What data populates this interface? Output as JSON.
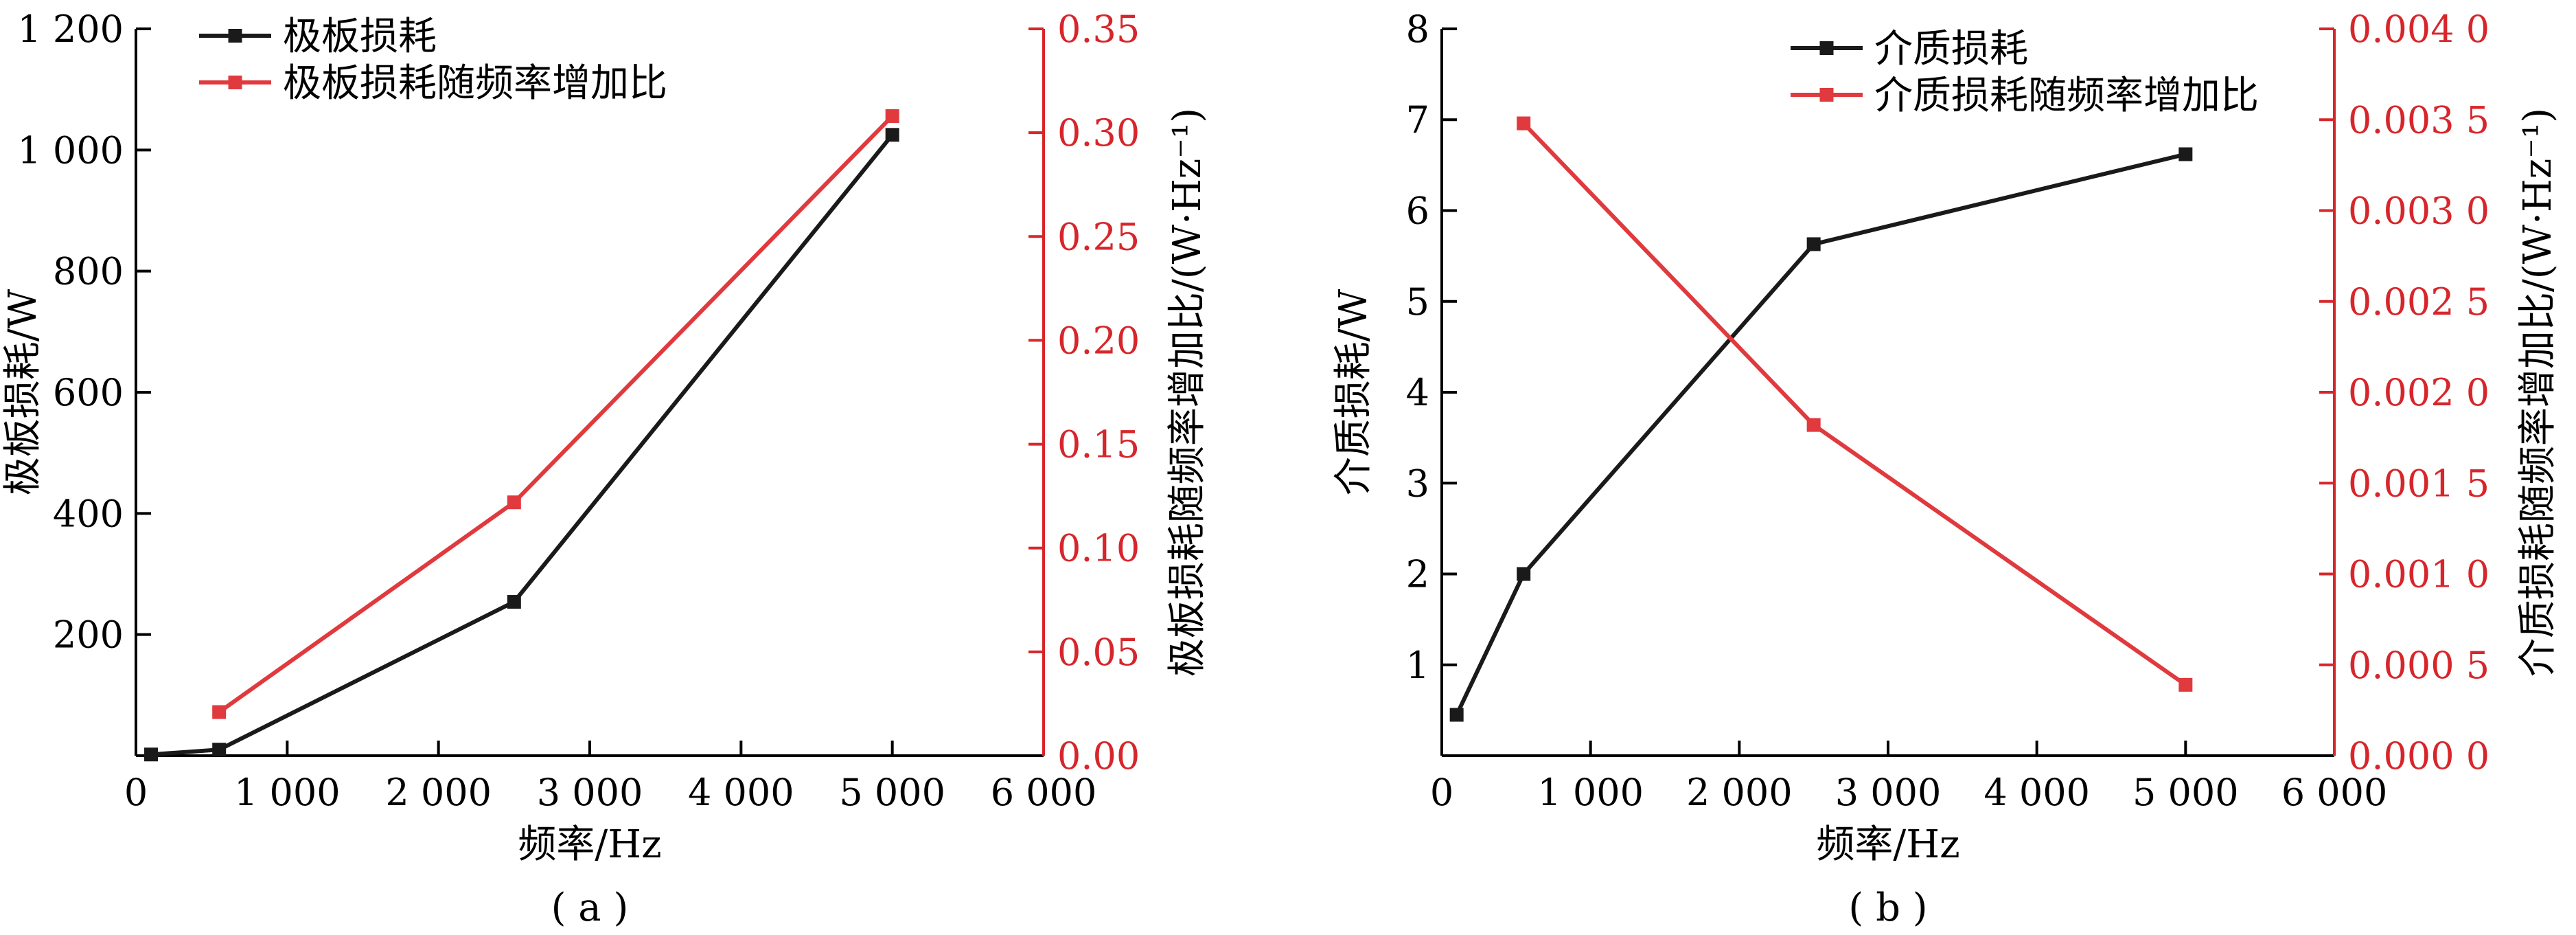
{
  "colors": {
    "black_series": "#1a1a1a",
    "red_series": "#e03a3e",
    "left_axis": "#000000",
    "right_axis": "#d7262b"
  },
  "chart_data": [
    {
      "type": "line",
      "panel_label": "( a )",
      "xlabel": "频率/Hz",
      "ylabel": "极板损耗/W",
      "y2label": "极板损耗随频率增加比/(W·Hz⁻¹)",
      "xlim": [
        0,
        6000
      ],
      "ylim": [
        0,
        1200
      ],
      "y2lim": [
        0,
        0.35
      ],
      "x_ticks": [
        0,
        1000,
        2000,
        3000,
        4000,
        5000,
        6000
      ],
      "x_tick_labels": [
        "0",
        "1 000",
        "2 000",
        "3 000",
        "4 000",
        "5 000",
        "6 000"
      ],
      "y_ticks": [
        200,
        400,
        600,
        800,
        1000,
        1200
      ],
      "y_tick_labels": [
        "200",
        "400",
        "600",
        "800",
        "1 000",
        "1 200"
      ],
      "y2_ticks": [
        0,
        0.05,
        0.1,
        0.15,
        0.2,
        0.25,
        0.3,
        0.35
      ],
      "y2_tick_labels": [
        "0.00",
        "0.05",
        "0.10",
        "0.15",
        "0.20",
        "0.25",
        "0.30",
        "0.35"
      ],
      "legend_position": "top-left",
      "series": [
        {
          "name": "极板损耗",
          "axis": "left",
          "x": [
            100,
            550,
            2500,
            5000
          ],
          "y": [
            2,
            10,
            254,
            1025
          ]
        },
        {
          "name": "极板损耗随频率增加比",
          "axis": "right",
          "x": [
            550,
            2500,
            5000
          ],
          "y": [
            0.021,
            0.122,
            0.308
          ]
        }
      ]
    },
    {
      "type": "line",
      "panel_label": "( b )",
      "xlabel": "频率/Hz",
      "ylabel": "介质损耗/W",
      "y2label": "介质损耗随频率增加比/(W·Hz⁻¹)",
      "xlim": [
        0,
        6000
      ],
      "ylim": [
        0,
        8
      ],
      "y2lim": [
        0,
        0.004
      ],
      "x_ticks": [
        0,
        1000,
        2000,
        3000,
        4000,
        5000,
        6000
      ],
      "x_tick_labels": [
        "0",
        "1 000",
        "2 000",
        "3 000",
        "4 000",
        "5 000",
        "6 000"
      ],
      "y_ticks": [
        1,
        2,
        3,
        4,
        5,
        6,
        7,
        8
      ],
      "y_tick_labels": [
        "1",
        "2",
        "3",
        "4",
        "5",
        "6",
        "7",
        "8"
      ],
      "y2_ticks": [
        0,
        0.0005,
        0.001,
        0.0015,
        0.002,
        0.0025,
        0.003,
        0.0035,
        0.004
      ],
      "y2_tick_labels": [
        "0.000 0",
        "0.000 5",
        "0.001 0",
        "0.001 5",
        "0.002 0",
        "0.002 5",
        "0.003 0",
        "0.003 5",
        "0.004 0"
      ],
      "legend_position": "top-center",
      "series": [
        {
          "name": "介质损耗",
          "axis": "left",
          "x": [
            100,
            550,
            2500,
            5000
          ],
          "y": [
            0.45,
            2.0,
            5.63,
            6.62
          ]
        },
        {
          "name": "介质损耗随频率增加比",
          "axis": "right",
          "x": [
            550,
            2500,
            5000
          ],
          "y": [
            0.00348,
            0.00182,
            0.00039
          ]
        }
      ]
    }
  ]
}
